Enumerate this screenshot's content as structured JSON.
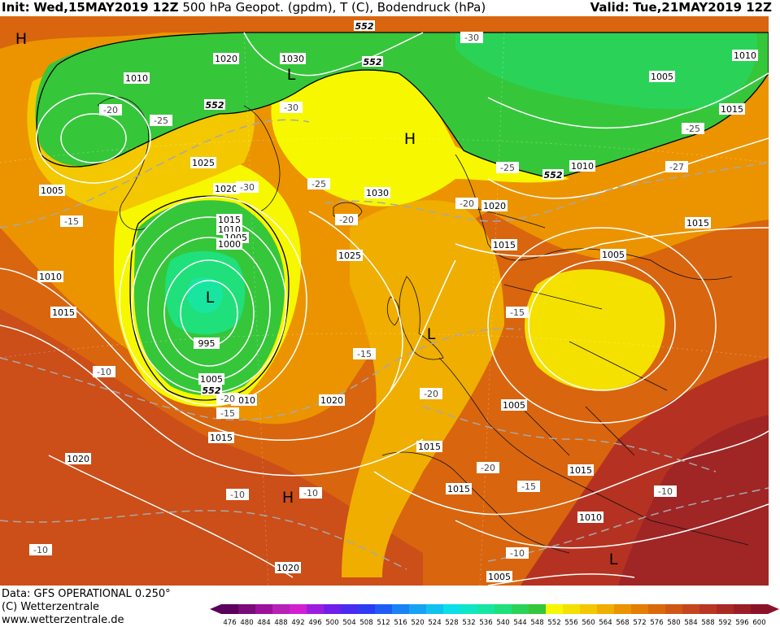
{
  "header": {
    "init_label": "Init:",
    "init_value": "Wed,15MAY2019 12Z",
    "description": "500 hPa Geopot. (gpdm), T (C), Bodendruck (hPa)",
    "valid_label": "Valid:",
    "valid_value": "Tue,21MAY2019 12Z"
  },
  "footer": {
    "data_line": "Data: GFS OPERATIONAL 0.250°",
    "copyright": "(C) Wetterzentrale",
    "url": "www.wetterzentrale.de"
  },
  "legend": {
    "values": [
      "476",
      "480",
      "484",
      "488",
      "492",
      "496",
      "500",
      "504",
      "508",
      "512",
      "516",
      "520",
      "524",
      "528",
      "532",
      "536",
      "540",
      "544",
      "548",
      "552",
      "556",
      "560",
      "564",
      "568",
      "572",
      "576",
      "580",
      "584",
      "588",
      "592",
      "596",
      "600"
    ],
    "colors": [
      "#5b005b",
      "#7a0b7a",
      "#9c109c",
      "#b820b8",
      "#d11fd1",
      "#9b1ee0",
      "#6f1fe8",
      "#4c2bf0",
      "#2d3cf4",
      "#1f5cf6",
      "#1a82f5",
      "#15a3f2",
      "#10c3ee",
      "#0bdfe8",
      "#10e6c6",
      "#18e6a0",
      "#1fe07a",
      "#2ad358",
      "#36c63a",
      "#f7f700",
      "#f5e100",
      "#f3c800",
      "#efae00",
      "#eb9400",
      "#e37e00",
      "#d96a0c",
      "#cf5716",
      "#c4461e",
      "#b83722",
      "#a92a24",
      "#9a1e26",
      "#8a1228"
    ]
  },
  "map_labels": {
    "geopotential": [
      "552",
      "552",
      "552",
      "552",
      "552"
    ],
    "isobars": [
      "1020",
      "1030",
      "1010",
      "1025",
      "1005",
      "1020",
      "1015",
      "1010",
      "1005",
      "1000",
      "995",
      "1005",
      "1010",
      "1010",
      "1015",
      "1020",
      "1015",
      "1020",
      "1025",
      "1030",
      "1020",
      "1015",
      "1005",
      "1015",
      "1010",
      "1015",
      "1010",
      "1005",
      "1020",
      "1015",
      "1015",
      "1005",
      "1010",
      "1005",
      "1015"
    ],
    "temperatures": [
      "-20",
      "-25",
      "-30",
      "-30",
      "-20",
      "-25",
      "-20",
      "-25",
      "-30",
      "-25",
      "-27",
      "-15",
      "-15",
      "-10",
      "-20",
      "-15",
      "-15",
      "-20",
      "-20",
      "-15",
      "-10",
      "-10",
      "-10",
      "-10",
      "-10"
    ],
    "pressure_centers": [
      "H",
      "L",
      "H",
      "L",
      "L",
      "H",
      "L"
    ]
  }
}
